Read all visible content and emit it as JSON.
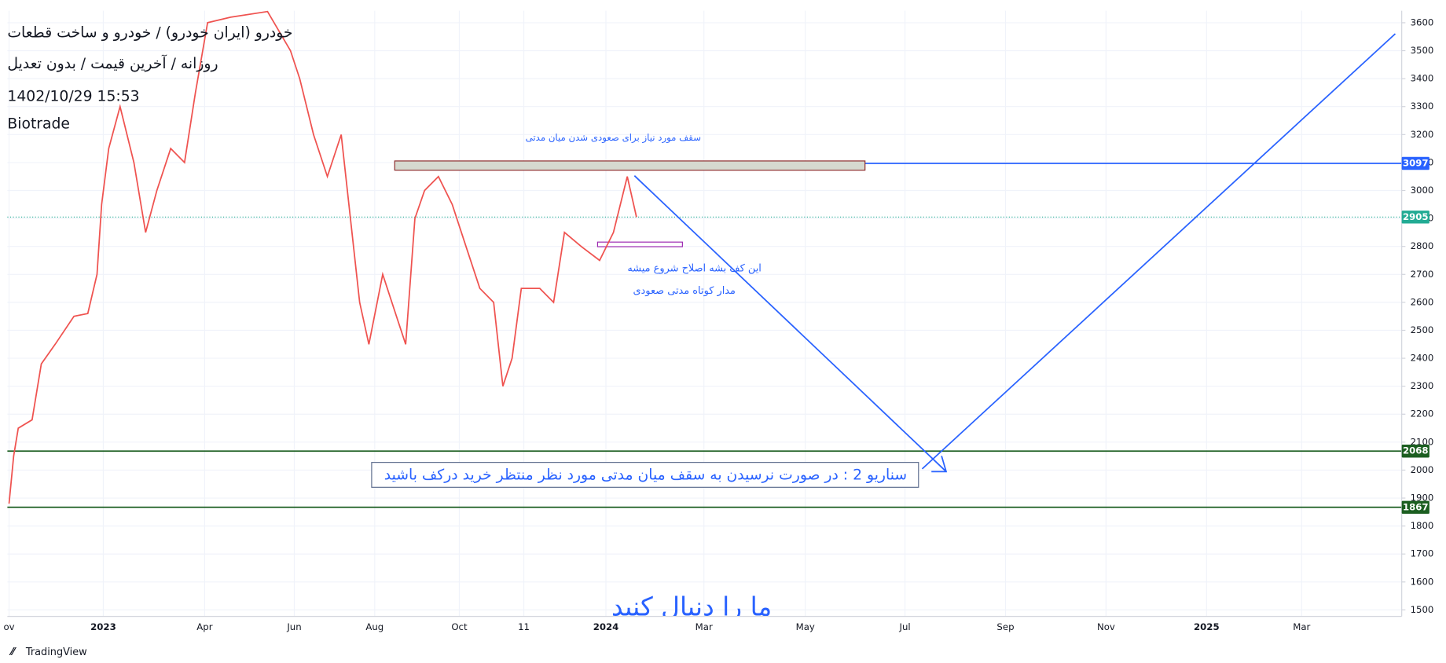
{
  "chart_data": {
    "type": "line",
    "title": "خودرو (ایران خودرو) / خودرو و ساخت قطعات",
    "subtitle": "روزانه / آخرین قیمت / بدون تعدیل",
    "date": "1402/10/29 15:53",
    "author": "Biotrade",
    "brand": "TradingView",
    "color": "#ef5350",
    "x": [
      -2.25,
      -2.14,
      -2.03,
      -1.7,
      -1.48,
      -1.15,
      -0.7,
      -0.37,
      -0.15,
      -0.04,
      0.13,
      0.4,
      0.73,
      1.01,
      1.28,
      1.61,
      1.94,
      2.2,
      2.49,
      3.04,
      3.92,
      4.47,
      4.69,
      5.02,
      5.35,
      5.68,
      5.9,
      6.12,
      6.34,
      6.67,
      7.0,
      7.22,
      7.44,
      7.67,
      8.0,
      8.33,
      8.66,
      8.99,
      9.32,
      9.54,
      9.76,
      9.98,
      10.42,
      10.75,
      11.01,
      11.41,
      11.85,
      12.18,
      12.51,
      12.73
    ],
    "values": [
      1880,
      2050,
      2150,
      2180,
      2380,
      2450,
      2550,
      2560,
      2700,
      2950,
      3150,
      3300,
      3100,
      2850,
      3000,
      3150,
      3100,
      3350,
      3600,
      3620,
      3640,
      3500,
      3400,
      3200,
      3050,
      3200,
      2900,
      2600,
      2450,
      2700,
      2550,
      2450,
      2900,
      3000,
      3050,
      2950,
      2800,
      2650,
      2600,
      2300,
      2400,
      2650,
      2650,
      2600,
      2850,
      2800,
      2750,
      2850,
      3050,
      2905
    ],
    "xlim": [
      -2.29,
      31.0
    ],
    "xticks": [
      {
        "value": -2.25,
        "label": "ov"
      },
      {
        "value": 0,
        "label": "2023"
      },
      {
        "value": 2.42,
        "label": "Apr"
      },
      {
        "value": 4.56,
        "label": "Jun"
      },
      {
        "value": 6.48,
        "label": "Aug"
      },
      {
        "value": 8.5,
        "label": "Oct"
      },
      {
        "value": 10.04,
        "label": "11"
      },
      {
        "value": 12,
        "label": "2024"
      },
      {
        "value": 14.34,
        "label": "Mar"
      },
      {
        "value": 16.76,
        "label": "May"
      },
      {
        "value": 19.14,
        "label": "Jul"
      },
      {
        "value": 21.54,
        "label": "Sep"
      },
      {
        "value": 23.94,
        "label": "Nov"
      },
      {
        "value": 26.34,
        "label": "2025"
      },
      {
        "value": 28.61,
        "label": "Mar"
      }
    ],
    "ylim": [
      1477,
      3643
    ],
    "yticks": [
      1500,
      1600,
      1700,
      1800,
      1900,
      2000,
      2100,
      2200,
      2300,
      2400,
      2500,
      2600,
      2700,
      2800,
      2900,
      3000,
      3100,
      3200,
      3300,
      3400,
      3500,
      3600
    ],
    "grid": true,
    "levels": [
      {
        "value": 3097,
        "color": "#2962ff",
        "style": "solid"
      },
      {
        "value": 2905,
        "color": "#22ab94",
        "style": "dotted"
      },
      {
        "value": 2068,
        "color": "#1b5e20",
        "style": "solid"
      },
      {
        "value": 1867,
        "color": "#1b5e20",
        "style": "solid"
      }
    ],
    "annotations": [
      "سقف مورد نیاز برای صعودی شدن میان مدتی",
      "این کف بشه اصلاح شروع میشه",
      "مدار کوتاه مدتی صعودی",
      "سناریو 2 : در صورت نرسیدن به سقف میان مدتی مورد نظر منتظر خرید درکف باشید",
      "ما را دنبال کنید"
    ]
  }
}
